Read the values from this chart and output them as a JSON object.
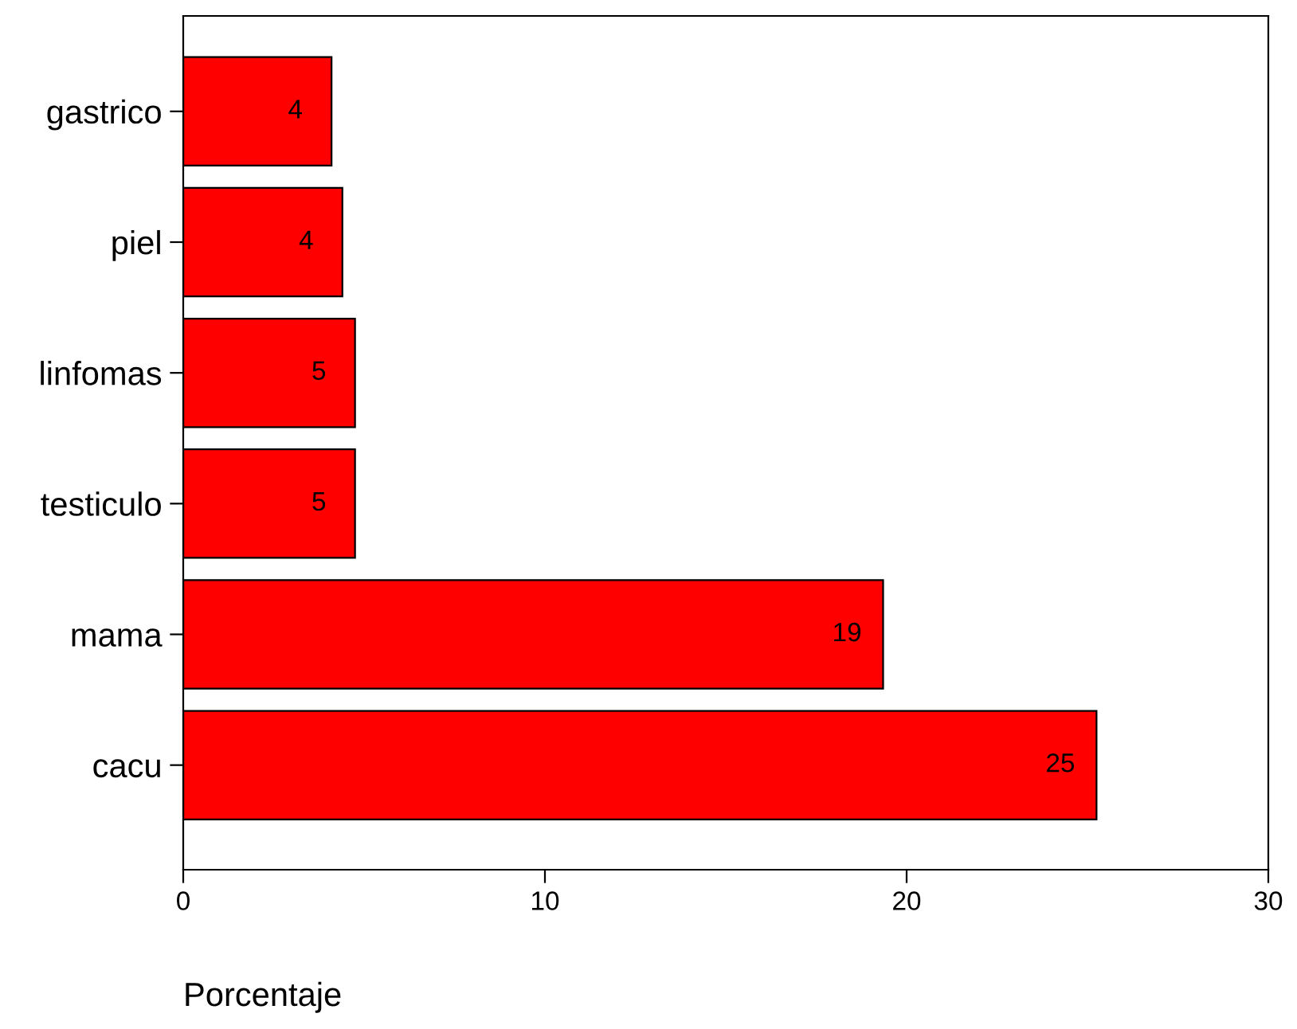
{
  "chart_data": {
    "type": "bar",
    "orientation": "horizontal",
    "categories": [
      "gastrico",
      "piel",
      "linfomas",
      "testiculo",
      "mama",
      "cacu"
    ],
    "values": [
      4.1,
      4.4,
      4.75,
      4.75,
      19.35,
      25.25
    ],
    "value_labels": [
      "4",
      "4",
      "5",
      "5",
      "19",
      "25"
    ],
    "color": "#ff0000",
    "xlabel": "Porcentaje",
    "xlim": [
      0,
      30
    ],
    "xticks": [
      0,
      10,
      20,
      30
    ],
    "grid": false,
    "legend": false
  }
}
